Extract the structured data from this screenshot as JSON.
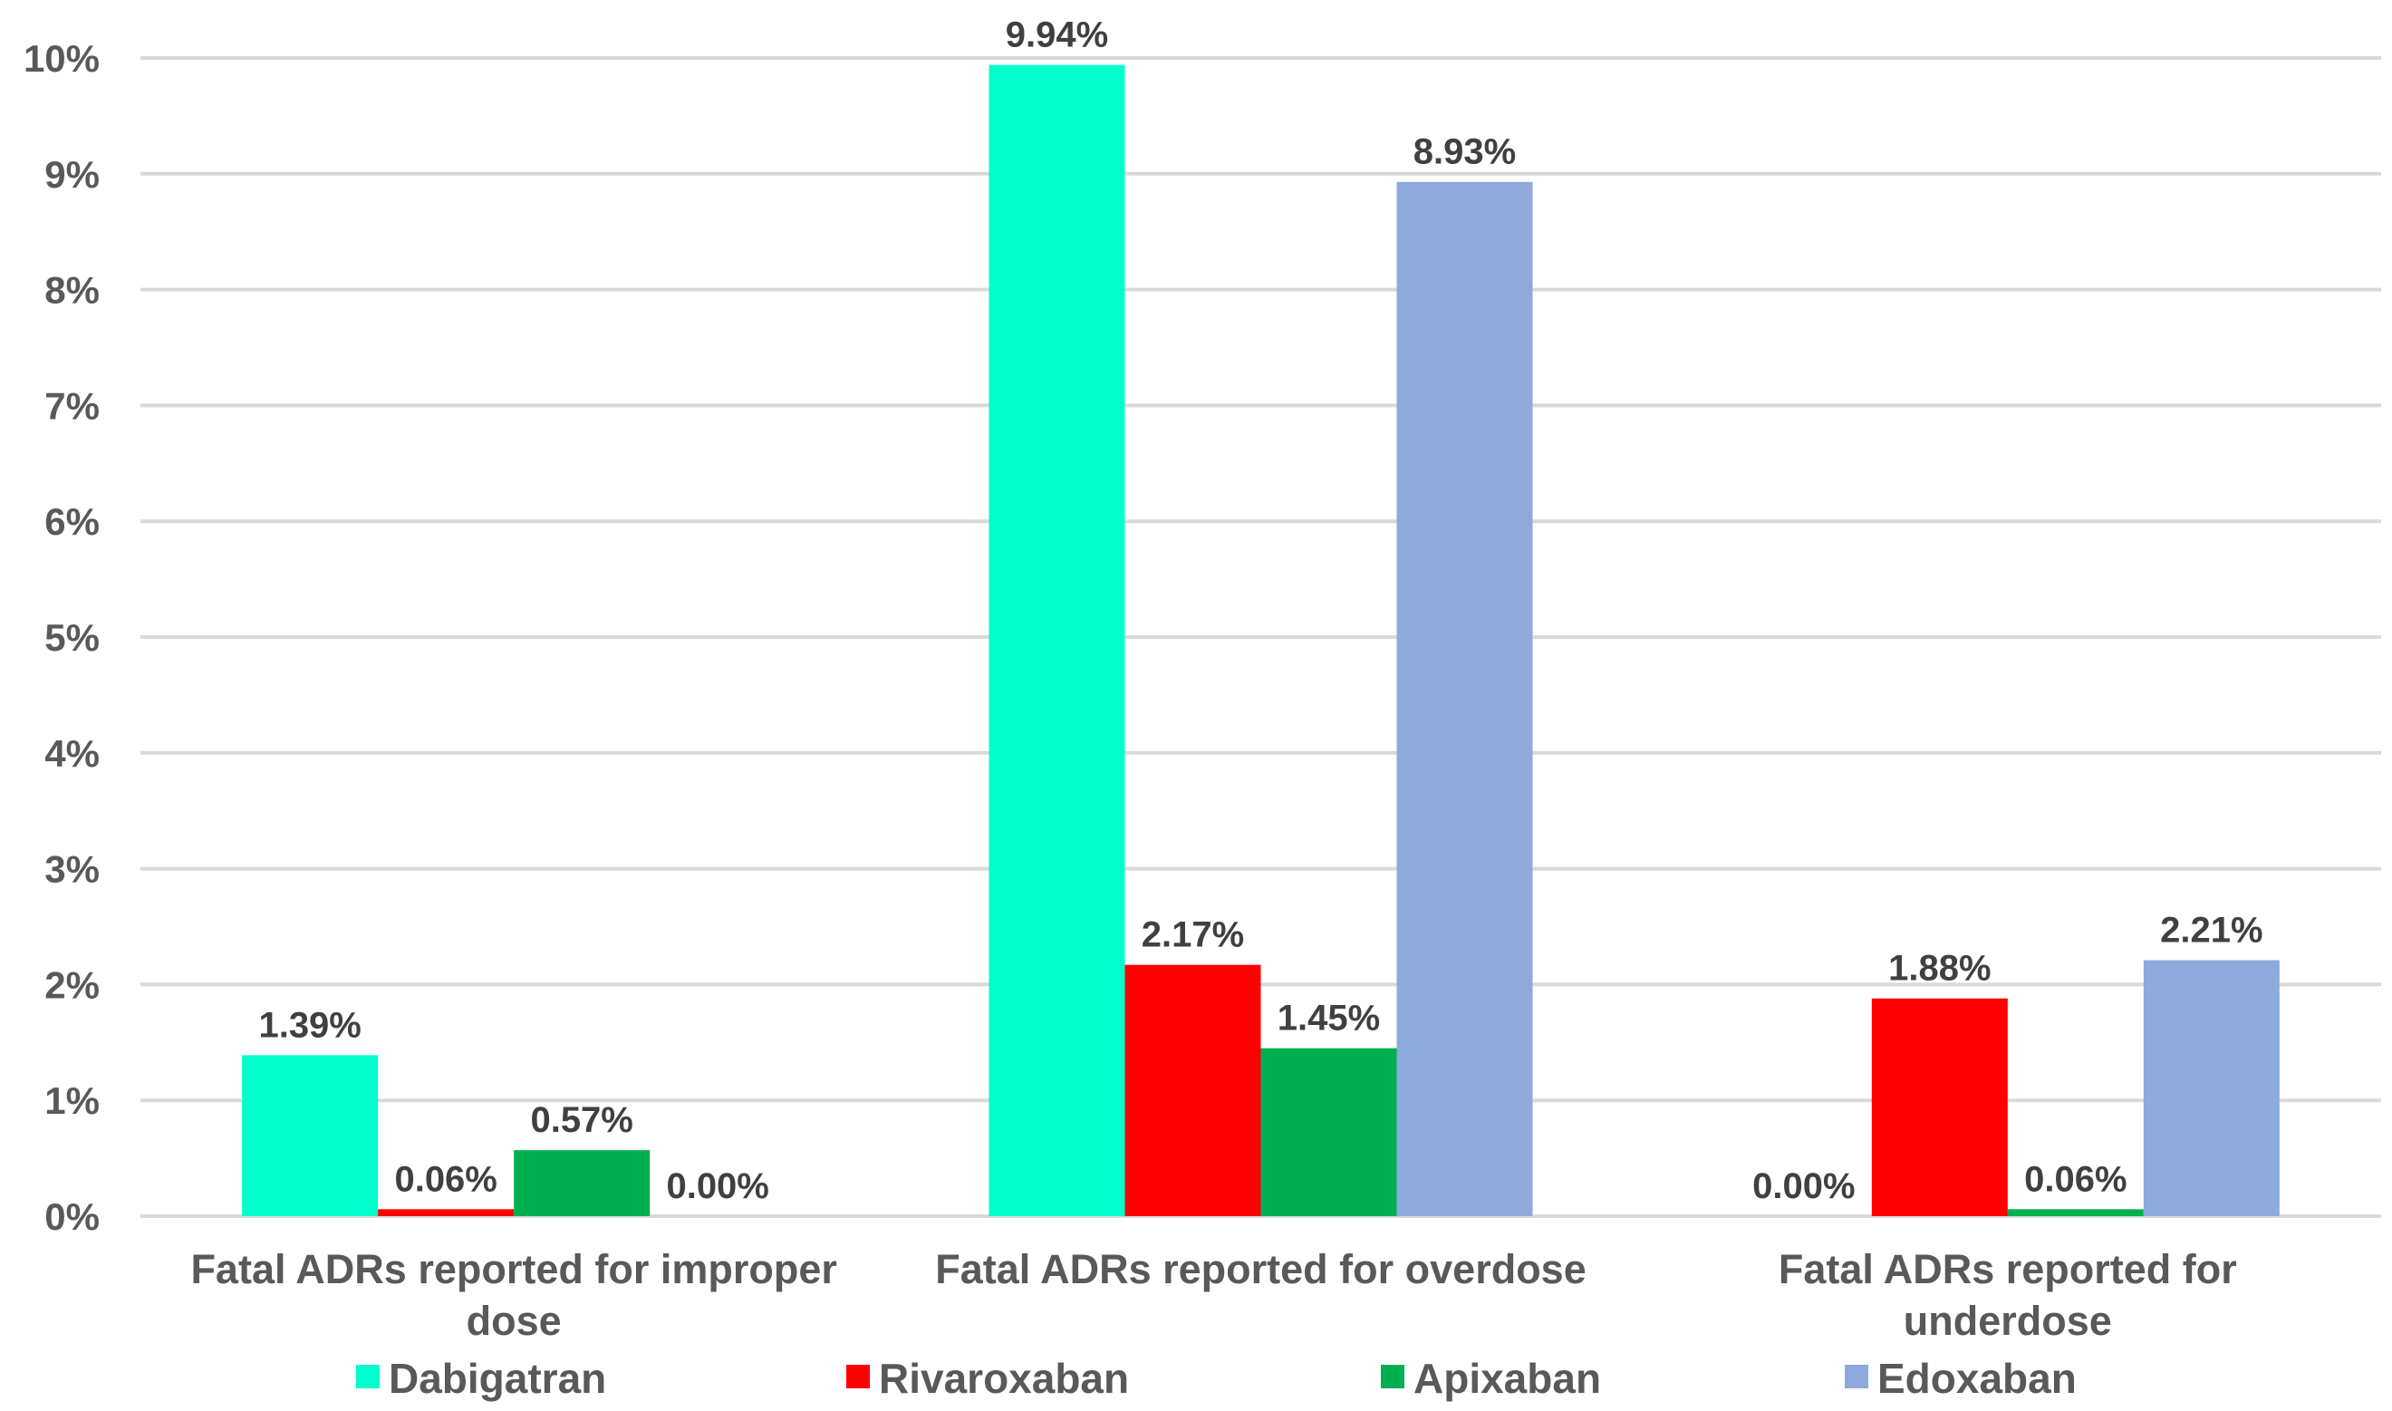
{
  "chart_data": {
    "type": "bar",
    "categories": [
      [
        "Fatal ADRs reported for improper",
        "dose"
      ],
      [
        "Fatal ADRs reported for overdose"
      ],
      [
        "Fatal ADRs reported for",
        "underdose"
      ]
    ],
    "series": [
      {
        "name": "Dabigatran",
        "color": "#00FFCC",
        "values": [
          1.39,
          9.94,
          0.0
        ],
        "labels": [
          "1.39%",
          "9.94%",
          "0.00%"
        ]
      },
      {
        "name": "Rivaroxaban",
        "color": "#FF0000",
        "values": [
          0.06,
          2.17,
          1.88
        ],
        "labels": [
          "0.06%",
          "2.17%",
          "1.88%"
        ]
      },
      {
        "name": "Apixaban",
        "color": "#00B050",
        "values": [
          0.57,
          1.45,
          0.06
        ],
        "labels": [
          "0.57%",
          "1.45%",
          "0.06%"
        ]
      },
      {
        "name": "Edoxaban",
        "color": "#8EA9DB",
        "values": [
          0.0,
          8.93,
          2.21
        ],
        "labels": [
          "0.00%",
          "8.93%",
          "2.21%"
        ]
      }
    ],
    "y_ticks": [
      "0%",
      "1%",
      "2%",
      "3%",
      "4%",
      "5%",
      "6%",
      "7%",
      "8%",
      "9%",
      "10%"
    ],
    "ylim": [
      0,
      10
    ],
    "ylabel": "",
    "xlabel": "",
    "title": "",
    "grid": true,
    "legend": "bottom"
  }
}
